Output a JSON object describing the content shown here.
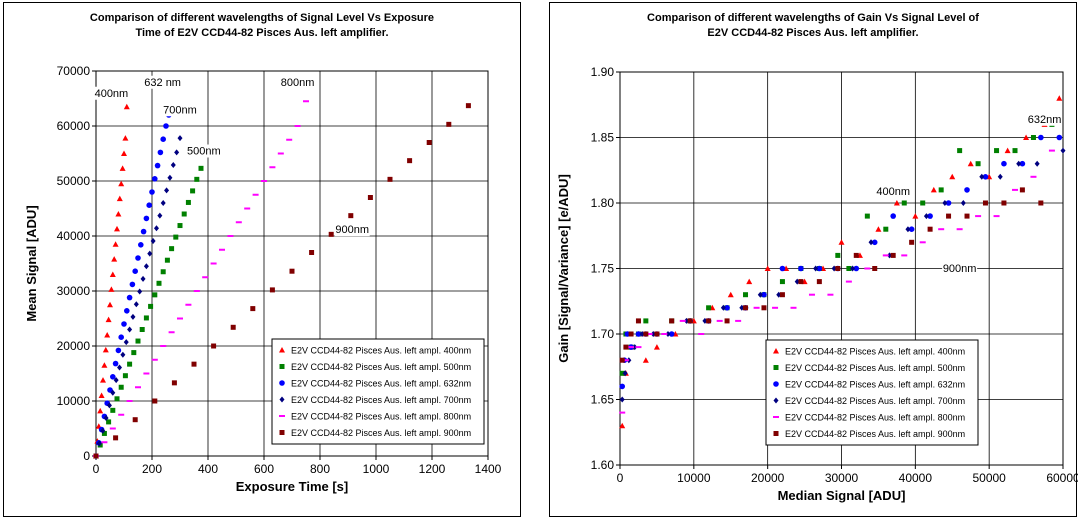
{
  "chart_data": [
    {
      "type": "scatter",
      "title": "Comparison of different wavelengths of Signal Level Vs Exposure\nTime of E2V CCD44-82 Pisces Aus. left amplifier.",
      "xlabel": "Exposure Time [s]",
      "ylabel": "Mean Signal [ADU]",
      "xlim": [
        0,
        1400
      ],
      "ylim": [
        0,
        70000
      ],
      "xticks": [
        "0",
        "200",
        "400",
        "600",
        "800",
        "1000",
        "1200",
        "1400"
      ],
      "yticks": [
        "0",
        "10000",
        "20000",
        "30000",
        "40000",
        "50000",
        "60000",
        "70000"
      ],
      "grid": true,
      "legend_position": "bottom-right",
      "annotations": [
        {
          "text": "400nm",
          "x": 55,
          "y": 65500
        },
        {
          "text": "632 nm",
          "x": 238,
          "y": 67500
        },
        {
          "text": "700nm",
          "x": 300,
          "y": 62500
        },
        {
          "text": "500nm",
          "x": 385,
          "y": 55000
        },
        {
          "text": "800nm",
          "x": 720,
          "y": 67500
        },
        {
          "text": "900nm",
          "x": 915,
          "y": 40700
        }
      ],
      "series": [
        {
          "name": "E2V CCD44-82 Pisces Aus. left ampl. 400nm",
          "color": "#ff0000",
          "marker": "triangle",
          "x": [
            0,
            5,
            10,
            15,
            20,
            25,
            30,
            35,
            40,
            45,
            50,
            55,
            60,
            65,
            70,
            75,
            80,
            85,
            90,
            95,
            100,
            105,
            110
          ],
          "y": [
            0,
            2700,
            5400,
            8200,
            11000,
            13800,
            16500,
            19300,
            22000,
            24800,
            27500,
            30300,
            33000,
            35800,
            38500,
            41300,
            44000,
            46800,
            49500,
            52300,
            55000,
            57800,
            63500
          ]
        },
        {
          "name": "E2V CCD44-82 Pisces Aus. left ampl. 500nm",
          "color": "#008000",
          "marker": "square",
          "x": [
            0,
            15,
            30,
            45,
            60,
            75,
            90,
            105,
            120,
            135,
            150,
            165,
            180,
            195,
            210,
            225,
            240,
            255,
            270,
            285,
            300,
            315,
            330,
            345,
            360,
            375
          ],
          "y": [
            0,
            2000,
            4100,
            6200,
            8300,
            10400,
            12500,
            14600,
            16700,
            18800,
            20900,
            23000,
            25100,
            27200,
            29300,
            31400,
            33500,
            35600,
            37700,
            39800,
            41900,
            44000,
            46100,
            48200,
            50300,
            52300
          ]
        },
        {
          "name": "E2V CCD44-82 Pisces Aus. left ampl. 632nm",
          "color": "#0000ff",
          "marker": "circle",
          "x": [
            0,
            10,
            20,
            30,
            40,
            50,
            60,
            70,
            80,
            90,
            100,
            110,
            120,
            130,
            140,
            150,
            160,
            170,
            180,
            190,
            200,
            210,
            220,
            230,
            240,
            250,
            260
          ],
          "y": [
            0,
            2400,
            4800,
            7200,
            9600,
            12000,
            14400,
            16800,
            19200,
            21600,
            24000,
            26400,
            28800,
            31200,
            33600,
            36000,
            38400,
            40800,
            43200,
            45600,
            48000,
            50400,
            52800,
            55200,
            57600,
            60000,
            62000
          ]
        },
        {
          "name": "E2V CCD44-82 Pisces Aus. left ampl. 700nm",
          "color": "#000080",
          "marker": "diamond",
          "x": [
            0,
            12,
            24,
            36,
            48,
            60,
            72,
            84,
            96,
            108,
            120,
            132,
            144,
            156,
            168,
            180,
            192,
            204,
            216,
            228,
            240,
            252,
            264,
            276,
            288,
            300
          ],
          "y": [
            0,
            2300,
            4600,
            6900,
            9200,
            11500,
            13800,
            16100,
            18400,
            20700,
            23000,
            25300,
            27600,
            29900,
            32200,
            34500,
            36800,
            39100,
            41400,
            43700,
            46000,
            48300,
            50600,
            52900,
            55200,
            57800
          ]
        },
        {
          "name": "E2V CCD44-82 Pisces Aus. left ampl. 800nm",
          "color": "#ff00ff",
          "marker": "dash",
          "x": [
            0,
            30,
            60,
            90,
            120,
            150,
            180,
            210,
            240,
            270,
            300,
            330,
            360,
            390,
            420,
            450,
            480,
            510,
            540,
            570,
            600,
            630,
            660,
            690,
            720,
            750
          ],
          "y": [
            0,
            2500,
            5000,
            7500,
            10000,
            12500,
            15000,
            17500,
            20000,
            22500,
            25000,
            27500,
            30000,
            32500,
            35000,
            37500,
            40000,
            42500,
            45000,
            47500,
            50000,
            52500,
            55000,
            57500,
            60000,
            64500
          ]
        },
        {
          "name": "E2V CCD44-82 Pisces Aus. left ampl. 900nm",
          "color": "#800000",
          "marker": "square",
          "x": [
            0,
            70,
            140,
            210,
            280,
            350,
            420,
            490,
            560,
            630,
            700,
            770,
            840,
            910,
            980,
            1050,
            1120,
            1190,
            1260,
            1330
          ],
          "y": [
            0,
            3300,
            6600,
            10000,
            13300,
            16700,
            20000,
            23400,
            26800,
            30200,
            33600,
            37000,
            40300,
            43700,
            47000,
            50300,
            53700,
            57000,
            60300,
            63700
          ]
        }
      ]
    },
    {
      "type": "scatter",
      "title": "Comparison of different wavelengths of Gain  Vs Signal Level of\nE2V CCD44-82 Pisces Aus. left amplifier.",
      "xlabel": "Median Signal [ADU]",
      "ylabel": "Gain [Signal/Variance] [e/ADU]",
      "xlim": [
        0,
        60000
      ],
      "ylim": [
        1.6,
        1.9
      ],
      "xticks": [
        "0",
        "10000",
        "20000",
        "30000",
        "40000",
        "50000",
        "60000"
      ],
      "yticks": [
        "1.60",
        "1.65",
        "1.70",
        "1.75",
        "1.80",
        "1.85",
        "1.90"
      ],
      "grid": true,
      "legend_position": "bottom-right",
      "annotations": [
        {
          "text": "632nm",
          "x": 57500,
          "y": 1.862
        },
        {
          "text": "400nm",
          "x": 37000,
          "y": 1.807
        },
        {
          "text": "900nm",
          "x": 46000,
          "y": 1.748
        }
      ],
      "series": [
        {
          "name": "E2V CCD44-82 Pisces Aus. left ampl. 400nm",
          "color": "#ff0000",
          "marker": "triangle",
          "x": [
            300,
            800,
            1500,
            2500,
            3500,
            5000,
            7500,
            10000,
            12500,
            15000,
            17500,
            20000,
            22500,
            25000,
            27500,
            30000,
            32500,
            35000,
            37500,
            40000,
            42500,
            45000,
            47500,
            50000,
            52500,
            55000,
            57500,
            59500
          ],
          "y": [
            1.63,
            1.67,
            1.69,
            1.7,
            1.68,
            1.69,
            1.7,
            1.71,
            1.72,
            1.73,
            1.74,
            1.75,
            1.75,
            1.74,
            1.75,
            1.77,
            1.76,
            1.78,
            1.8,
            1.79,
            1.81,
            1.82,
            1.83,
            1.82,
            1.84,
            1.85,
            1.86,
            1.88
          ]
        },
        {
          "name": "E2V CCD44-82 Pisces Aus. left ampl. 500nm",
          "color": "#008000",
          "marker": "square",
          "x": [
            300,
            800,
            1500,
            2500,
            3500,
            5000,
            7000,
            9500,
            12000,
            14500,
            17000,
            19500,
            22000,
            24500,
            27000,
            29500,
            31000,
            33500,
            36000,
            38500,
            41000,
            43500,
            46000,
            48500,
            51000,
            53500,
            56000,
            58500
          ],
          "y": [
            1.67,
            1.7,
            1.69,
            1.7,
            1.71,
            1.7,
            1.71,
            1.71,
            1.72,
            1.72,
            1.73,
            1.73,
            1.74,
            1.75,
            1.75,
            1.76,
            1.75,
            1.79,
            1.78,
            1.8,
            1.8,
            1.81,
            1.84,
            1.83,
            1.84,
            1.84,
            1.85,
            1.86
          ]
        },
        {
          "name": "E2V CCD44-82 Pisces Aus. left ampl. 632nm",
          "color": "#0000ff",
          "marker": "circle",
          "x": [
            300,
            600,
            1000,
            1500,
            2500,
            3500,
            5000,
            7000,
            9500,
            12000,
            14500,
            17000,
            19500,
            22000,
            24500,
            27000,
            29500,
            32000,
            34500,
            37000,
            39500,
            42000,
            44500,
            47000,
            49500,
            52000,
            54500,
            57000,
            59500
          ],
          "y": [
            1.66,
            1.68,
            1.7,
            1.69,
            1.7,
            1.7,
            1.7,
            1.7,
            1.71,
            1.71,
            1.72,
            1.72,
            1.73,
            1.75,
            1.75,
            1.75,
            1.75,
            1.75,
            1.77,
            1.79,
            1.78,
            1.79,
            1.8,
            1.81,
            1.82,
            1.83,
            1.83,
            1.85,
            1.85
          ]
        },
        {
          "name": "E2V CCD44-82 Pisces Aus. left ampl. 700nm",
          "color": "#000080",
          "marker": "diamond",
          "x": [
            300,
            700,
            1200,
            2000,
            3000,
            4500,
            6500,
            9000,
            11500,
            14000,
            16500,
            19000,
            21500,
            24000,
            26500,
            29000,
            31500,
            34000,
            36500,
            39000,
            41500,
            44000,
            46500,
            49000,
            51500,
            54000,
            56500,
            60000
          ],
          "y": [
            1.65,
            1.67,
            1.68,
            1.69,
            1.7,
            1.7,
            1.7,
            1.71,
            1.71,
            1.72,
            1.72,
            1.73,
            1.73,
            1.74,
            1.75,
            1.75,
            1.75,
            1.77,
            1.76,
            1.78,
            1.79,
            1.8,
            1.8,
            1.82,
            1.82,
            1.83,
            1.83,
            1.84
          ]
        },
        {
          "name": "E2V CCD44-82 Pisces Aus. left ampl. 800nm",
          "color": "#ff00ff",
          "marker": "dash",
          "x": [
            300,
            800,
            1500,
            2500,
            4000,
            6000,
            8500,
            11000,
            13500,
            16000,
            18500,
            21000,
            23500,
            26000,
            28500,
            31000,
            33500,
            36000,
            38500,
            41000,
            43500,
            46000,
            48500,
            51000,
            53500,
            56000,
            58500
          ],
          "y": [
            1.64,
            1.68,
            1.69,
            1.69,
            1.7,
            1.7,
            1.71,
            1.7,
            1.71,
            1.71,
            1.72,
            1.72,
            1.72,
            1.73,
            1.73,
            1.74,
            1.75,
            1.76,
            1.76,
            1.77,
            1.78,
            1.78,
            1.79,
            1.79,
            1.81,
            1.82,
            1.84
          ]
        },
        {
          "name": "E2V CCD44-82 Pisces Aus. left ampl. 900nm",
          "color": "#800000",
          "marker": "square",
          "x": [
            300,
            800,
            1500,
            2500,
            3500,
            5000,
            7000,
            9500,
            12000,
            14500,
            17000,
            19500,
            22000,
            24500,
            27000,
            29500,
            32000,
            34500,
            37000,
            39500,
            42000,
            44500,
            47000,
            49500,
            52000,
            54500,
            57000
          ],
          "y": [
            1.68,
            1.69,
            1.7,
            1.71,
            1.7,
            1.7,
            1.71,
            1.71,
            1.71,
            1.71,
            1.72,
            1.72,
            1.73,
            1.74,
            1.74,
            1.75,
            1.76,
            1.75,
            1.76,
            1.77,
            1.78,
            1.79,
            1.79,
            1.8,
            1.8,
            1.81,
            1.8
          ]
        }
      ]
    }
  ]
}
